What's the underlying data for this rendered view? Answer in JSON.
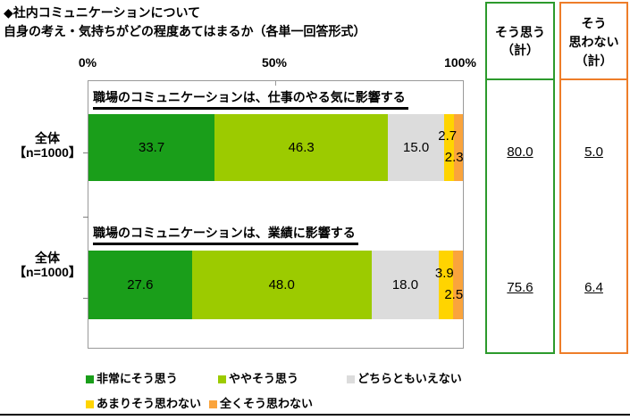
{
  "title": {
    "line1": "◆社内コミュニケーションについて",
    "line2": "自身の考え・気持ちがどの程度あてはまるか（各単一回答形式）"
  },
  "axis": {
    "ticks": [
      "0%",
      "50%",
      "100%"
    ]
  },
  "left_labels": {
    "rows": [
      [
        "全体",
        "【n=1000】"
      ],
      [
        "全体",
        "【n=1000】"
      ]
    ]
  },
  "summary": {
    "agree": {
      "header_lines": [
        "そう思う",
        "（計）"
      ],
      "values": [
        "80.0",
        "75.6"
      ],
      "border_color": "#2C9A2C"
    },
    "disagree": {
      "header_lines": [
        "そう",
        "思わない",
        "（計）"
      ],
      "values": [
        "5.0",
        "6.4"
      ],
      "border_color": "#EE7D29"
    }
  },
  "chart_data": {
    "type": "bar",
    "orientation": "horizontal",
    "stacked": true,
    "xlim": [
      0,
      100
    ],
    "x_tick_labels": [
      "0%",
      "50%",
      "100%"
    ],
    "categories": [
      "全体【n=1000】",
      "全体【n=1000】"
    ],
    "series_names": [
      "非常にそう思う",
      "ややそう思う",
      "どちらともいえない",
      "あまりそう思わない",
      "全くそう思わない"
    ],
    "series_colors": [
      "#1A9E1A",
      "#9CCB00",
      "#DCDCDC",
      "#FFD400",
      "#FAA43C"
    ],
    "rows": [
      {
        "statement": "職場のコミュニケーションは、仕事のやる気に影響する",
        "values": [
          33.7,
          46.3,
          15.0,
          2.7,
          2.3
        ],
        "agree_total": 80.0,
        "disagree_total": 5.0
      },
      {
        "statement": "職場のコミュニケーションは、業績に影響する",
        "values": [
          27.6,
          48.0,
          18.0,
          3.9,
          2.5
        ],
        "agree_total": 75.6,
        "disagree_total": 6.4
      }
    ],
    "totals_columns": [
      "そう思う（計）",
      "そう思わない（計）"
    ],
    "legend_position": "bottom"
  }
}
